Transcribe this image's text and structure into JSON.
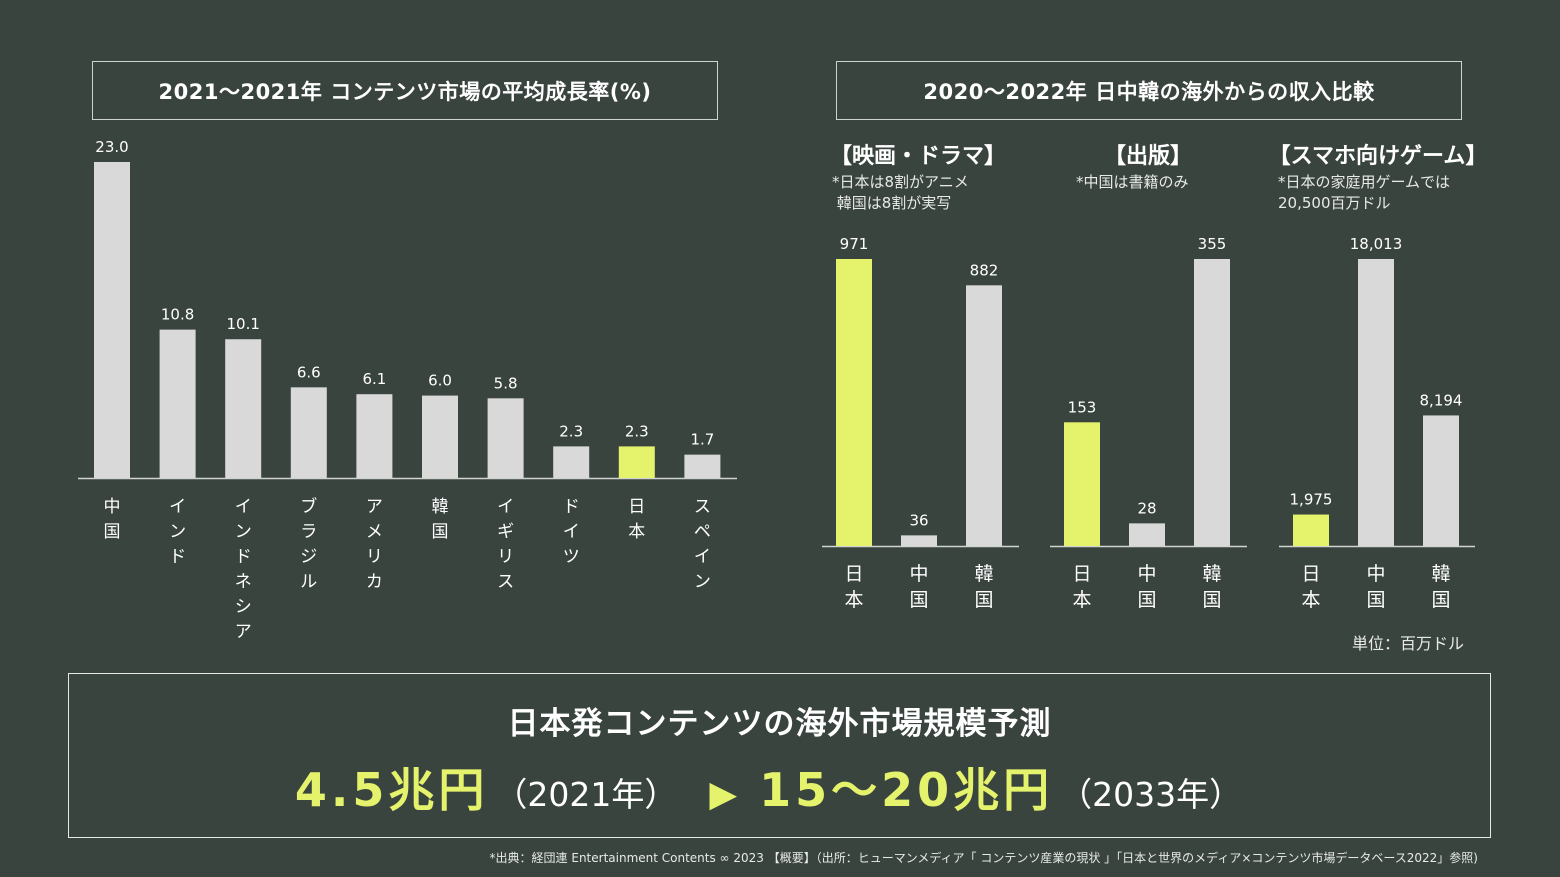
{
  "colors": {
    "background": "#3a443f",
    "bar": "#d9d9d9",
    "highlight": "#e4f26c",
    "text": "#ffffff"
  },
  "left_title": "2021〜2021年 コンテンツ市場の平均成長率(%)",
  "right_title": "2020〜2022年 日中韓の海外からの収入比較",
  "right_subcharts": [
    {
      "heading": "【映画・ドラマ】",
      "note": "*日本は8割がアニメ\n 韓国は8割が実写"
    },
    {
      "heading": "【出版】",
      "note": "*中国は書籍のみ"
    },
    {
      "heading": "【スマホ向けゲーム】",
      "note": "*日本の家庭用ゲームでは\n20,500百万ドル"
    }
  ],
  "unit_label": "単位：百万ドル",
  "chart_data": [
    {
      "type": "bar",
      "title": "2021〜2021年 コンテンツ市場の平均成長率(%)",
      "categories": [
        "中国",
        "インド",
        "インドネシア",
        "ブラジル",
        "アメリカ",
        "韓国",
        "イギリス",
        "ドイツ",
        "日本",
        "スペイン"
      ],
      "values": [
        23.0,
        10.8,
        10.1,
        6.6,
        6.1,
        6.0,
        5.8,
        2.3,
        2.3,
        1.7
      ],
      "value_labels": [
        "23.0",
        "10.8",
        "10.1",
        "6.6",
        "6.1",
        "6.0",
        "5.8",
        "2.3",
        "2.3",
        "1.7"
      ],
      "highlight": "日本",
      "ylim": [
        0,
        23.0
      ]
    },
    {
      "type": "bar",
      "title": "【映画・ドラマ】",
      "categories": [
        "日本",
        "中国",
        "韓国"
      ],
      "values": [
        971,
        36,
        882
      ],
      "value_labels": [
        "971",
        "36",
        "882"
      ],
      "highlight": "日本",
      "ylim": [
        0,
        971
      ]
    },
    {
      "type": "bar",
      "title": "【出版】",
      "categories": [
        "日本",
        "中国",
        "韓国"
      ],
      "values": [
        153,
        28,
        355
      ],
      "value_labels": [
        "153",
        "28",
        "355"
      ],
      "highlight": "日本",
      "ylim": [
        0,
        355
      ]
    },
    {
      "type": "bar",
      "title": "【スマホ向けゲーム】",
      "categories": [
        "日本",
        "中国",
        "韓国"
      ],
      "values": [
        1975,
        18013,
        8194
      ],
      "value_labels": [
        "1,975",
        "18,013",
        "8,194"
      ],
      "highlight": "日本",
      "ylim": [
        0,
        18013
      ]
    }
  ],
  "bottom": {
    "heading": "日本発コンテンツの海外市場規模予測",
    "value_2021": "4.5兆円",
    "year_2021": "（2021年）",
    "arrow": "▶",
    "value_2033": "15〜20兆円",
    "year_2033": "（2033年）"
  },
  "source": "*出典：経団連 Entertainment Contents ∞ 2023 【概要】（出所：ヒューマンメディア「 コンテンツ産業の現状 」「日本と世界のメディア×コンテンツ市場データベース2022」参照)"
}
